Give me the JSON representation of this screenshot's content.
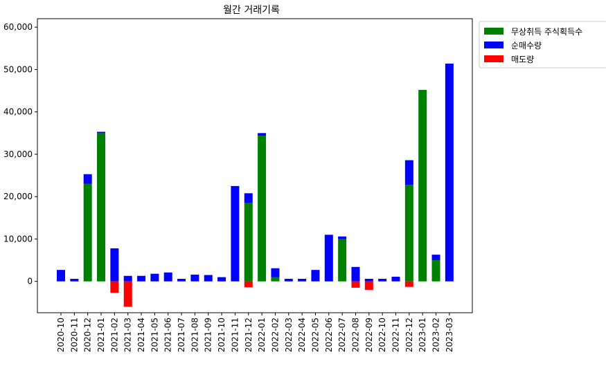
{
  "chart_data": {
    "type": "bar",
    "stacked": true,
    "title": "월간 거래기록",
    "xlabel": "",
    "ylabel": "",
    "ylim": [
      -7400,
      62000
    ],
    "yticks": [
      0,
      10000,
      20000,
      30000,
      40000,
      50000,
      60000
    ],
    "ytick_labels": [
      "0",
      "10,000",
      "20,000",
      "30,000",
      "40,000",
      "50,000",
      "60,000"
    ],
    "grid": false,
    "legend_position": "outside-top-right",
    "categories": [
      "2020-10",
      "2020-11",
      "2020-12",
      "2021-01",
      "2021-02",
      "2021-03",
      "2021-04",
      "2021-05",
      "2021-06",
      "2021-07",
      "2021-08",
      "2021-09",
      "2021-10",
      "2021-11",
      "2021-12",
      "2022-01",
      "2022-02",
      "2022-03",
      "2022-04",
      "2022-05",
      "2022-06",
      "2022-07",
      "2022-08",
      "2022-09",
      "2022-10",
      "2022-11",
      "2022-12",
      "2023-01",
      "2023-02",
      "2023-03"
    ],
    "series": [
      {
        "name": "무상취득 주식획득수",
        "color": "#008000",
        "values": [
          0,
          0,
          23000,
          35000,
          0,
          0,
          0,
          0,
          0,
          0,
          0,
          0,
          0,
          0,
          18500,
          34400,
          1000,
          0,
          0,
          0,
          0,
          10000,
          0,
          0,
          0,
          0,
          22800,
          45200,
          5000,
          0
        ]
      },
      {
        "name": "순매수량",
        "color": "#0000ff",
        "values": [
          2700,
          600,
          2300,
          300,
          7800,
          1300,
          1300,
          1800,
          2100,
          600,
          1600,
          1500,
          1000,
          22500,
          2300,
          600,
          2100,
          600,
          600,
          2700,
          11000,
          600,
          3400,
          600,
          600,
          1100,
          5800,
          0,
          1300,
          51400
        ]
      },
      {
        "name": "매도량",
        "color": "#ff0000",
        "values": [
          0,
          0,
          0,
          0,
          -2700,
          -6000,
          0,
          0,
          0,
          0,
          0,
          0,
          0,
          0,
          -1400,
          0,
          0,
          0,
          0,
          0,
          0,
          0,
          -1500,
          -2000,
          0,
          0,
          -1300,
          0,
          0,
          0
        ]
      }
    ]
  }
}
